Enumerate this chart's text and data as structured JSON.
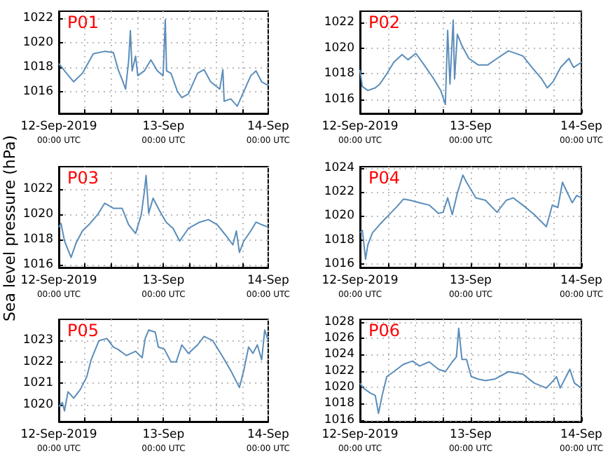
{
  "chart_data": [
    {
      "type": "line",
      "title": "P01",
      "xlim": [
        "2019-09-12T00:00",
        "2019-09-14T00:00"
      ],
      "ylim": [
        1014.2,
        1022.6
      ],
      "yticks": [
        1016,
        1018,
        1020,
        1022
      ],
      "grid": true,
      "xticks": [
        {
          "value": "2019-09-12T00:00",
          "label": "12-Sep-2019\n00:00 UTC"
        },
        {
          "value": "2019-09-12T06:00",
          "label": null
        },
        {
          "value": "2019-09-12T12:00",
          "label": null
        },
        {
          "value": "2019-09-12T18:00",
          "label": null
        },
        {
          "value": "2019-09-13T00:00",
          "label": "13-Sep\n00:00 UTC"
        },
        {
          "value": "2019-09-13T06:00",
          "label": null
        },
        {
          "value": "2019-09-13T12:00",
          "label": null
        },
        {
          "value": "2019-09-13T18:00",
          "label": null
        },
        {
          "value": "2019-09-14T00:00",
          "label": "14-Sep\n00:00 UTC"
        }
      ],
      "series": [
        {
          "color": "#5b8dba",
          "x": [
            "2019-09-12T00:00",
            "2019-09-12T01:18",
            "2019-09-12T03:24",
            "2019-09-12T05:24",
            "2019-09-12T07:54",
            "2019-09-12T10:30",
            "2019-09-12T12:30",
            "2019-09-12T13:42",
            "2019-09-12T14:30",
            "2019-09-12T15:18",
            "2019-09-12T16:00",
            "2019-09-12T16:24",
            "2019-09-12T16:48",
            "2019-09-12T17:36",
            "2019-09-12T18:06",
            "2019-09-12T19:36",
            "2019-09-12T21:06",
            "2019-09-12T22:36",
            "2019-09-12T23:54",
            "2019-09-13T00:24",
            "2019-09-13T00:42",
            "2019-09-13T01:42",
            "2019-09-13T03:12",
            "2019-09-13T04:12",
            "2019-09-13T05:42",
            "2019-09-13T07:48",
            "2019-09-13T09:18",
            "2019-09-13T10:48",
            "2019-09-13T12:54",
            "2019-09-13T13:36",
            "2019-09-13T13:54",
            "2019-09-13T15:24",
            "2019-09-13T16:54",
            "2019-09-13T18:24",
            "2019-09-13T20:00",
            "2019-09-13T21:12",
            "2019-09-13T22:30",
            "2019-09-14T00:00"
          ],
          "values": [
            1018.3,
            1017.7,
            1016.8,
            1017.5,
            1019.1,
            1019.3,
            1019.2,
            1017.7,
            1017.0,
            1016.2,
            1018.5,
            1021.0,
            1017.7,
            1018.9,
            1017.3,
            1017.7,
            1018.6,
            1017.7,
            1017.3,
            1021.9,
            1017.7,
            1017.5,
            1016.0,
            1015.5,
            1015.8,
            1017.5,
            1017.8,
            1016.8,
            1016.2,
            1017.8,
            1015.2,
            1015.4,
            1014.8,
            1016.0,
            1017.3,
            1017.7,
            1016.8,
            1016.5
          ]
        }
      ]
    },
    {
      "type": "line",
      "title": "P02",
      "xlim": [
        "2019-09-12T00:00",
        "2019-09-14T00:00"
      ],
      "ylim": [
        1014.9,
        1022.9
      ],
      "yticks": [
        1016,
        1018,
        1020,
        1022
      ],
      "grid": true,
      "xticks": [
        {
          "value": "2019-09-12T00:00",
          "label": "12-Sep-2019\n00:00 UTC"
        },
        {
          "value": "2019-09-12T06:00",
          "label": null
        },
        {
          "value": "2019-09-12T12:00",
          "label": null
        },
        {
          "value": "2019-09-12T18:00",
          "label": null
        },
        {
          "value": "2019-09-13T00:00",
          "label": "13-Sep\n00:00 UTC"
        },
        {
          "value": "2019-09-13T06:00",
          "label": null
        },
        {
          "value": "2019-09-13T12:00",
          "label": null
        },
        {
          "value": "2019-09-13T18:00",
          "label": null
        },
        {
          "value": "2019-09-14T00:00",
          "label": "14-Sep\n00:00 UTC"
        }
      ],
      "series": [
        {
          "color": "#5b8dba",
          "x": [
            "2019-09-12T00:00",
            "2019-09-12T00:30",
            "2019-09-12T01:42",
            "2019-09-12T03:18",
            "2019-09-12T04:18",
            "2019-09-12T05:48",
            "2019-09-12T07:18",
            "2019-09-12T09:06",
            "2019-09-12T10:24",
            "2019-09-12T12:06",
            "2019-09-12T13:54",
            "2019-09-12T16:00",
            "2019-09-12T17:30",
            "2019-09-12T18:30",
            "2019-09-12T19:00",
            "2019-09-12T19:30",
            "2019-09-12T20:12",
            "2019-09-12T20:30",
            "2019-09-12T21:06",
            "2019-09-12T22:06",
            "2019-09-12T23:36",
            "2019-09-13T01:36",
            "2019-09-13T03:42",
            "2019-09-13T05:42",
            "2019-09-13T08:12",
            "2019-09-13T11:18",
            "2019-09-13T13:18",
            "2019-09-13T15:24",
            "2019-09-13T16:36",
            "2019-09-13T17:54",
            "2019-09-13T19:30",
            "2019-09-13T21:18",
            "2019-09-13T22:18",
            "2019-09-14T00:00"
          ],
          "values": [
            1018.3,
            1017.0,
            1016.7,
            1016.9,
            1017.2,
            1018.0,
            1018.9,
            1019.5,
            1019.1,
            1019.6,
            1018.7,
            1017.6,
            1016.7,
            1015.6,
            1021.4,
            1017.2,
            1022.2,
            1017.6,
            1021.1,
            1020.2,
            1019.2,
            1018.7,
            1018.7,
            1019.2,
            1019.8,
            1019.4,
            1018.5,
            1017.6,
            1016.9,
            1017.4,
            1018.5,
            1019.2,
            1018.5,
            1018.9
          ]
        }
      ]
    },
    {
      "type": "line",
      "title": "P03",
      "ylabel": "Sea level pressure (hPa)",
      "xlim": [
        "2019-09-12T00:00",
        "2019-09-14T00:00"
      ],
      "ylim": [
        1015.8,
        1023.8
      ],
      "yticks": [
        1016,
        1018,
        1020,
        1022
      ],
      "grid": true,
      "xticks": [
        {
          "value": "2019-09-12T00:00",
          "label": "12-Sep-2019\n00:00 UTC"
        },
        {
          "value": "2019-09-12T06:00",
          "label": null
        },
        {
          "value": "2019-09-12T12:00",
          "label": null
        },
        {
          "value": "2019-09-12T18:00",
          "label": null
        },
        {
          "value": "2019-09-13T00:00",
          "label": "13-Sep\n00:00 UTC"
        },
        {
          "value": "2019-09-13T06:00",
          "label": null
        },
        {
          "value": "2019-09-13T12:00",
          "label": null
        },
        {
          "value": "2019-09-13T18:00",
          "label": null
        },
        {
          "value": "2019-09-14T00:00",
          "label": "14-Sep\n00:00 UTC"
        }
      ],
      "series": [
        {
          "color": "#5b8dba",
          "x": [
            "2019-09-12T00:00",
            "2019-09-12T00:30",
            "2019-09-12T01:18",
            "2019-09-12T02:48",
            "2019-09-12T03:54",
            "2019-09-12T05:24",
            "2019-09-12T06:54",
            "2019-09-12T08:54",
            "2019-09-12T10:30",
            "2019-09-12T12:30",
            "2019-09-12T14:30",
            "2019-09-12T16:00",
            "2019-09-12T17:36",
            "2019-09-12T18:54",
            "2019-09-12T19:36",
            "2019-09-12T20:00",
            "2019-09-12T20:36",
            "2019-09-12T21:36",
            "2019-09-12T23:06",
            "2019-09-13T00:36",
            "2019-09-13T02:12",
            "2019-09-13T03:42",
            "2019-09-13T05:42",
            "2019-09-13T08:18",
            "2019-09-13T10:18",
            "2019-09-13T12:18",
            "2019-09-13T14:24",
            "2019-09-13T15:54",
            "2019-09-13T16:42",
            "2019-09-13T17:24",
            "2019-09-13T18:24",
            "2019-09-13T20:00",
            "2019-09-13T21:12",
            "2019-09-13T22:30",
            "2019-09-14T00:00"
          ],
          "values": [
            1019.0,
            1019.3,
            1017.9,
            1016.6,
            1017.7,
            1018.7,
            1019.2,
            1020.0,
            1020.9,
            1020.5,
            1020.5,
            1019.2,
            1018.5,
            1020.0,
            1021.8,
            1023.1,
            1020.1,
            1021.3,
            1020.3,
            1019.4,
            1018.9,
            1017.9,
            1018.9,
            1019.4,
            1019.6,
            1019.2,
            1018.3,
            1017.6,
            1018.7,
            1017.0,
            1017.9,
            1018.7,
            1019.4,
            1019.2,
            1019.0
          ]
        }
      ]
    },
    {
      "type": "line",
      "title": "P04",
      "xlim": [
        "2019-09-12T00:00",
        "2019-09-14T00:00"
      ],
      "ylim": [
        1015.7,
        1024.1
      ],
      "yticks": [
        1016,
        1018,
        1020,
        1022,
        1024
      ],
      "grid": true,
      "xticks": [
        {
          "value": "2019-09-12T00:00",
          "label": "12-Sep-2019\n00:00 UTC"
        },
        {
          "value": "2019-09-12T06:00",
          "label": null
        },
        {
          "value": "2019-09-12T12:00",
          "label": null
        },
        {
          "value": "2019-09-12T18:00",
          "label": null
        },
        {
          "value": "2019-09-13T00:00",
          "label": "13-Sep\n00:00 UTC"
        },
        {
          "value": "2019-09-13T06:00",
          "label": null
        },
        {
          "value": "2019-09-13T12:00",
          "label": null
        },
        {
          "value": "2019-09-13T18:00",
          "label": null
        },
        {
          "value": "2019-09-14T00:00",
          "label": "14-Sep\n00:00 UTC"
        }
      ],
      "series": [
        {
          "color": "#5b8dba",
          "x": [
            "2019-09-12T00:00",
            "2019-09-12T00:30",
            "2019-09-12T01:12",
            "2019-09-12T01:42",
            "2019-09-12T02:42",
            "2019-09-12T04:18",
            "2019-09-12T06:18",
            "2019-09-12T08:18",
            "2019-09-12T09:24",
            "2019-09-12T10:54",
            "2019-09-12T12:54",
            "2019-09-12T15:00",
            "2019-09-12T17:00",
            "2019-09-12T18:00",
            "2019-09-12T19:00",
            "2019-09-12T20:00",
            "2019-09-12T21:06",
            "2019-09-12T22:18",
            "2019-09-12T23:06",
            "2019-09-13T01:06",
            "2019-09-13T03:12",
            "2019-09-13T05:42",
            "2019-09-13T07:42",
            "2019-09-13T09:12",
            "2019-09-13T11:18",
            "2019-09-13T13:48",
            "2019-09-13T16:24",
            "2019-09-13T17:42",
            "2019-09-13T18:54",
            "2019-09-13T19:54",
            "2019-09-13T21:00",
            "2019-09-13T22:00",
            "2019-09-13T23:00",
            "2019-09-14T00:00"
          ],
          "values": [
            1018.6,
            1018.8,
            1016.4,
            1017.6,
            1018.6,
            1019.3,
            1020.1,
            1020.9,
            1021.4,
            1021.3,
            1021.1,
            1020.9,
            1020.2,
            1020.3,
            1021.5,
            1020.1,
            1021.9,
            1023.4,
            1022.8,
            1021.5,
            1021.3,
            1020.3,
            1021.3,
            1021.5,
            1020.9,
            1020.1,
            1019.1,
            1020.9,
            1020.7,
            1022.8,
            1021.9,
            1021.1,
            1021.7,
            1021.5
          ]
        }
      ]
    },
    {
      "type": "line",
      "title": "P05",
      "xlim": [
        "2019-09-12T00:00",
        "2019-09-14T00:00"
      ],
      "ylim": [
        1019.2,
        1024
      ],
      "yticks": [
        1020,
        1021,
        1022,
        1023
      ],
      "grid": true,
      "xticks": [
        {
          "value": "2019-09-12T00:00",
          "label": "12-Sep-2019\n00:00 UTC"
        },
        {
          "value": "2019-09-12T06:00",
          "label": null
        },
        {
          "value": "2019-09-12T12:00",
          "label": null
        },
        {
          "value": "2019-09-12T18:00",
          "label": null
        },
        {
          "value": "2019-09-13T00:00",
          "label": "13-Sep\n00:00 UTC"
        },
        {
          "value": "2019-09-13T06:00",
          "label": null
        },
        {
          "value": "2019-09-13T12:00",
          "label": null
        },
        {
          "value": "2019-09-13T18:00",
          "label": null
        },
        {
          "value": "2019-09-14T00:00",
          "label": "14-Sep\n00:00 UTC"
        }
      ],
      "series": [
        {
          "color": "#5b8dba",
          "x": [
            "2019-09-12T00:00",
            "2019-09-12T00:48",
            "2019-09-12T01:18",
            "2019-09-12T02:06",
            "2019-09-12T03:24",
            "2019-09-12T04:54",
            "2019-09-12T06:24",
            "2019-09-12T07:24",
            "2019-09-12T09:12",
            "2019-09-12T11:00",
            "2019-09-12T12:30",
            "2019-09-12T13:30",
            "2019-09-12T15:30",
            "2019-09-12T17:36",
            "2019-09-12T19:06",
            "2019-09-12T19:48",
            "2019-09-12T20:36",
            "2019-09-12T22:06",
            "2019-09-12T22:48",
            "2019-09-13T00:12",
            "2019-09-13T01:42",
            "2019-09-13T02:54",
            "2019-09-13T04:12",
            "2019-09-13T05:42",
            "2019-09-13T07:48",
            "2019-09-13T09:18",
            "2019-09-13T11:18",
            "2019-09-13T13:24",
            "2019-09-13T15:24",
            "2019-09-13T17:24",
            "2019-09-13T18:24",
            "2019-09-13T19:30",
            "2019-09-13T20:30",
            "2019-09-13T21:30",
            "2019-09-13T22:30",
            "2019-09-13T23:12",
            "2019-09-14T00:00"
          ],
          "values": [
            1019.9,
            1020.1,
            1019.7,
            1020.6,
            1020.3,
            1020.7,
            1021.3,
            1022.1,
            1023.0,
            1023.1,
            1022.7,
            1022.6,
            1022.3,
            1022.5,
            1022.2,
            1023.1,
            1023.5,
            1023.4,
            1022.7,
            1022.6,
            1022.0,
            1022.0,
            1022.8,
            1022.4,
            1022.8,
            1023.2,
            1023.0,
            1022.3,
            1021.6,
            1020.8,
            1021.6,
            1022.7,
            1022.4,
            1022.8,
            1022.1,
            1023.5,
            1023.0
          ]
        }
      ]
    },
    {
      "type": "line",
      "title": "P06",
      "xlim": [
        "2019-09-12T00:00",
        "2019-09-14T00:00"
      ],
      "ylim": [
        1015.8,
        1028.3
      ],
      "yticks": [
        1016,
        1018,
        1020,
        1022,
        1024,
        1026,
        1028
      ],
      "grid": true,
      "xticks": [
        {
          "value": "2019-09-12T00:00",
          "label": "12-Sep-2019\n00:00 UTC"
        },
        {
          "value": "2019-09-12T06:00",
          "label": null
        },
        {
          "value": "2019-09-12T12:00",
          "label": null
        },
        {
          "value": "2019-09-12T18:00",
          "label": null
        },
        {
          "value": "2019-09-13T00:00",
          "label": "13-Sep\n00:00 UTC"
        },
        {
          "value": "2019-09-13T06:00",
          "label": null
        },
        {
          "value": "2019-09-13T12:00",
          "label": null
        },
        {
          "value": "2019-09-13T18:00",
          "label": null
        },
        {
          "value": "2019-09-14T00:00",
          "label": "14-Sep\n00:00 UTC"
        }
      ],
      "series": [
        {
          "color": "#5b8dba",
          "x": [
            "2019-09-12T00:00",
            "2019-09-12T00:42",
            "2019-09-12T02:12",
            "2019-09-12T03:18",
            "2019-09-12T04:00",
            "2019-09-12T04:48",
            "2019-09-12T05:48",
            "2019-09-12T07:18",
            "2019-09-12T09:24",
            "2019-09-12T11:24",
            "2019-09-12T12:54",
            "2019-09-12T15:00",
            "2019-09-12T17:00",
            "2019-09-12T18:30",
            "2019-09-12T20:00",
            "2019-09-12T20:54",
            "2019-09-12T21:24",
            "2019-09-12T22:06",
            "2019-09-12T23:06",
            "2019-09-13T00:06",
            "2019-09-13T01:36",
            "2019-09-13T03:12",
            "2019-09-13T05:12",
            "2019-09-13T08:12",
            "2019-09-13T11:18",
            "2019-09-13T13:48",
            "2019-09-13T16:24",
            "2019-09-13T17:54",
            "2019-09-13T18:36",
            "2019-09-13T19:24",
            "2019-09-13T21:30",
            "2019-09-13T22:30",
            "2019-09-14T00:00"
          ],
          "values": [
            1020.5,
            1019.9,
            1019.3,
            1019.0,
            1016.8,
            1019.0,
            1021.3,
            1021.9,
            1022.8,
            1023.2,
            1022.6,
            1023.1,
            1022.2,
            1021.9,
            1023.1,
            1023.7,
            1027.2,
            1023.4,
            1023.4,
            1021.3,
            1021.0,
            1020.8,
            1021.0,
            1021.9,
            1021.6,
            1020.5,
            1019.9,
            1020.8,
            1021.3,
            1019.9,
            1022.2,
            1020.5,
            1019.9
          ]
        }
      ]
    }
  ]
}
